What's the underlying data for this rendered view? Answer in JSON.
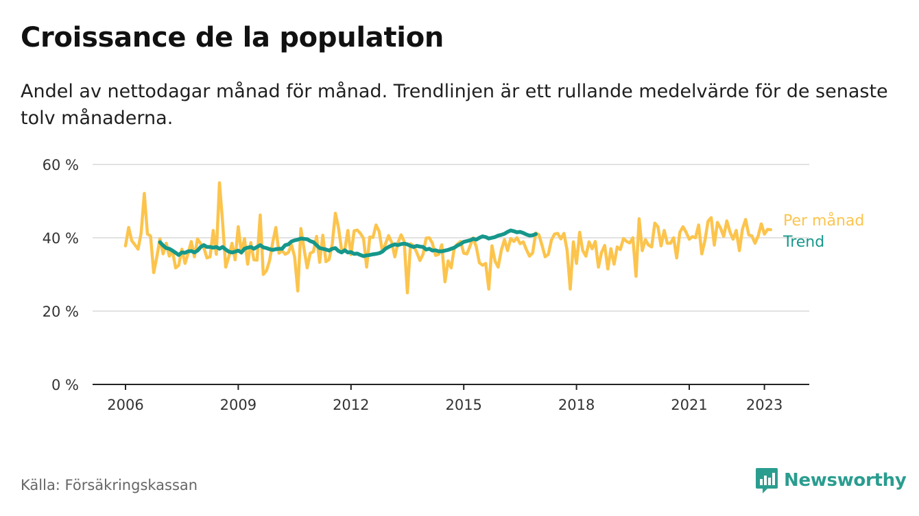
{
  "title": "Croissance de la population",
  "chart_data": {
    "type": "line",
    "title": "Croissance de la population",
    "subtitle": "Andel av nettodagar månad för månad. Trendlinjen är ett rullande medelvärde för de senaste tolv månaderna.",
    "xlabel": "",
    "ylabel": "",
    "ylim": [
      0,
      60
    ],
    "yticks": [
      "0 %",
      "20 %",
      "40 %",
      "60 %"
    ],
    "ytick_values": [
      0,
      20,
      40,
      60
    ],
    "xticks": [
      "2006",
      "2009",
      "2012",
      "2015",
      "2018",
      "2021",
      "2023"
    ],
    "xtick_values": [
      2006,
      2009,
      2012,
      2015,
      2018,
      2021,
      2023
    ],
    "grid": true,
    "legend": "inline-right",
    "series": [
      {
        "name": "Per månad",
        "color": "#fcc44d",
        "start": "2006-01",
        "values": [
          37.8,
          42.8,
          39.2,
          38.1,
          36.9,
          41.3,
          52.1,
          41.0,
          40.5,
          30.5,
          34.8,
          39.7,
          35.6,
          38.5,
          35.0,
          36.4,
          31.8,
          32.5,
          36.9,
          33.0,
          35.7,
          39.0,
          34.8,
          39.7,
          38.4,
          37.3,
          34.5,
          34.8,
          42.0,
          35.5,
          55.0,
          44.2,
          32.0,
          34.9,
          38.5,
          34.0,
          43.0,
          35.8,
          39.8,
          32.8,
          38.7,
          34.0,
          33.9,
          46.2,
          30.0,
          31.0,
          33.8,
          38.7,
          42.8,
          35.8,
          36.5,
          35.5,
          36.0,
          38.1,
          34.8,
          25.5,
          42.5,
          37.0,
          31.8,
          35.8,
          36.2,
          40.4,
          33.3,
          40.7,
          33.5,
          34.1,
          38.2,
          46.7,
          42.8,
          36.7,
          36.7,
          42.0,
          35.4,
          41.9,
          42.1,
          41.2,
          39.8,
          32.0,
          40.2,
          40.1,
          43.5,
          41.7,
          36.3,
          38.3,
          40.6,
          38.7,
          34.8,
          38.7,
          40.8,
          39.0,
          25.0,
          38.4,
          37.8,
          36.0,
          33.8,
          35.5,
          39.9,
          40.0,
          38.5,
          35.2,
          35.5,
          38.1,
          28.0,
          33.7,
          31.8,
          37.4,
          38.3,
          39.0,
          35.8,
          35.6,
          37.7,
          40.0,
          37.5,
          33.2,
          32.5,
          33.0,
          26.0,
          37.8,
          33.6,
          32.0,
          36.6,
          39.5,
          36.5,
          39.8,
          39.0,
          40.0,
          38.4,
          38.9,
          36.8,
          35.0,
          35.9,
          41.3,
          40.8,
          37.9,
          34.8,
          35.5,
          39.4,
          41.0,
          41.2,
          39.7,
          41.2,
          36.6,
          26.0,
          38.9,
          33.0,
          41.5,
          36.5,
          35.0,
          38.9,
          37.0,
          39.0,
          32.0,
          36.0,
          37.9,
          31.5,
          37.0,
          32.8,
          37.5,
          36.8,
          39.8,
          39.0,
          38.6,
          40.0,
          29.5,
          45.2,
          36.5,
          39.5,
          38.0,
          37.5,
          44.0,
          43.0,
          37.8,
          42.0,
          38.5,
          38.5,
          40.0,
          34.5,
          41.5,
          43.0,
          41.5,
          39.6,
          40.3,
          40.0,
          43.5,
          35.6,
          39.2,
          44.5,
          45.5,
          38.0,
          44.2,
          42.6,
          40.4,
          44.6,
          41.6,
          39.6,
          42.0,
          36.5,
          42.4,
          45.0,
          40.8,
          40.5,
          38.5,
          40.5,
          43.8,
          41.0,
          42.3,
          42.2
        ]
      },
      {
        "name": "Trend",
        "color": "#16978b",
        "start": "2006-12",
        "values": [
          38.8,
          37.9,
          37.2,
          37.0,
          36.5,
          35.9,
          35.3,
          36.0,
          35.9,
          36.3,
          36.4,
          36.0,
          36.5,
          37.5,
          38.0,
          37.5,
          37.5,
          37.3,
          37.5,
          37.0,
          37.5,
          36.8,
          36.2,
          36.0,
          36.2,
          36.5,
          36.0,
          37.0,
          37.3,
          37.5,
          37.0,
          37.5,
          38.0,
          37.4,
          37.2,
          36.9,
          36.7,
          36.9,
          37.0,
          37.0,
          38.0,
          38.2,
          39.0,
          39.3,
          39.5,
          39.8,
          39.7,
          39.6,
          39.1,
          38.8,
          38.0,
          37.2,
          37.0,
          36.8,
          36.5,
          37.0,
          37.2,
          36.4,
          36.0,
          36.6,
          36.0,
          36.1,
          35.6,
          35.7,
          35.3,
          35.0,
          35.2,
          35.3,
          35.5,
          35.6,
          35.8,
          36.2,
          37.0,
          37.5,
          37.9,
          38.2,
          38.0,
          38.3,
          38.4,
          38.2,
          37.8,
          37.5,
          37.8,
          37.6,
          37.5,
          36.8,
          37.0,
          36.5,
          36.6,
          36.3,
          36.3,
          36.5,
          36.7,
          37.0,
          37.3,
          37.9,
          38.3,
          38.9,
          39.1,
          39.3,
          39.7,
          39.5,
          40.0,
          40.4,
          40.2,
          39.8,
          40.0,
          40.2,
          40.6,
          40.8,
          41.1,
          41.6,
          42.0,
          41.8,
          41.5,
          41.6,
          41.3,
          40.9,
          40.6,
          40.7,
          41.0
        ]
      }
    ]
  },
  "source": "Källa: Försäkringskassan",
  "brand": "Newsworthy",
  "colors": {
    "monthly": "#fcc44d",
    "trend": "#16978b",
    "grid": "#d9d9d9",
    "axis": "#222222",
    "brand": "#2a9d8f"
  },
  "icons": {
    "brand": "newsworthy-logo-icon"
  }
}
